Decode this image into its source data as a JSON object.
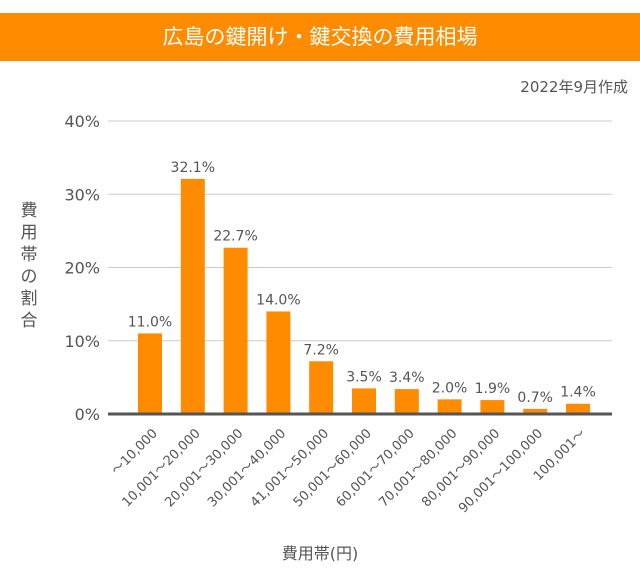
{
  "header": {
    "title": "広島の鍵開け・鍵交換の費用相場",
    "date": "2022年9月作成"
  },
  "chart_data": {
    "type": "bar",
    "title": "広島の鍵開け・鍵交換の費用相場",
    "xlabel": "費用帯(円)",
    "ylabel": "費用帯の割合",
    "categories": [
      "～10,000",
      "10,001～20,000",
      "20,001～30,000",
      "30,001～40,000",
      "41,001～50,000",
      "50,001～60,000",
      "60,001～70,000",
      "70,001～80,000",
      "80,001～90,000",
      "90,001～100,000",
      "100,001～"
    ],
    "values": [
      11.0,
      32.1,
      22.7,
      14.0,
      7.2,
      3.5,
      3.4,
      2.0,
      1.9,
      0.7,
      1.4
    ],
    "data_labels": [
      "11.0%",
      "32.1%",
      "22.7%",
      "14.0%",
      "7.2%",
      "3.5%",
      "3.4%",
      "2.0%",
      "1.9%",
      "0.7%",
      "1.4%"
    ],
    "yticks": [
      "0%",
      "10%",
      "20%",
      "30%",
      "40%"
    ],
    "ylim": [
      0,
      40
    ],
    "grid": true,
    "bar_color": "#FF8C00"
  }
}
